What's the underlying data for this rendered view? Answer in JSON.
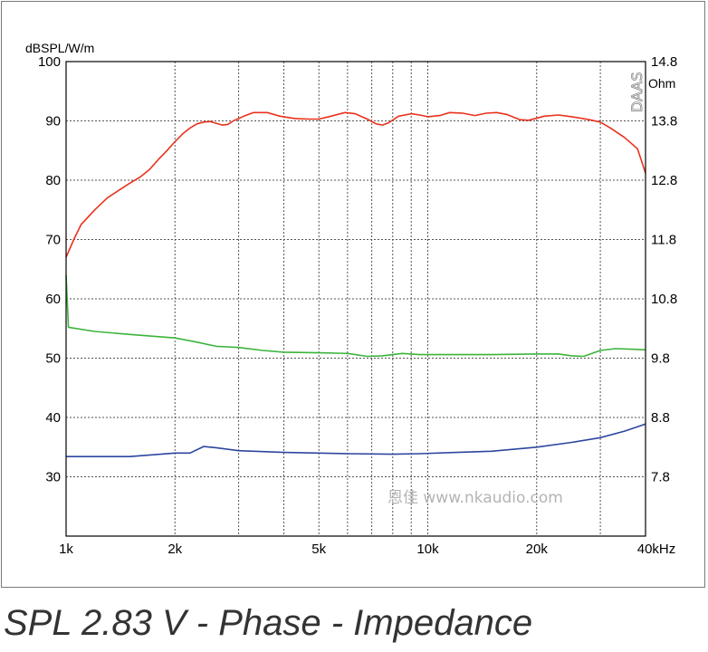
{
  "caption": "SPL 2.83 V - Phase - Impedance",
  "watermark": "恩佳 www.nkaudio.com",
  "brand": "DAAS",
  "chart_data": {
    "type": "line",
    "x_scale": "log",
    "xlim": [
      1000,
      40000
    ],
    "x_ticks": [
      {
        "value": 1000,
        "label": "1k"
      },
      {
        "value": 2000,
        "label": "2k"
      },
      {
        "value": 5000,
        "label": "5k"
      },
      {
        "value": 10000,
        "label": "10k"
      },
      {
        "value": 20000,
        "label": "20k"
      },
      {
        "value": 40000,
        "label": "40kHz"
      }
    ],
    "x_gridlines": [
      1000,
      2000,
      3000,
      4000,
      5000,
      6000,
      7000,
      8000,
      9000,
      10000,
      20000,
      30000,
      40000
    ],
    "left_axis": {
      "label": "dBSPL/W/m",
      "ylim": [
        20,
        100
      ],
      "ticks": [
        30,
        40,
        50,
        60,
        70,
        80,
        90,
        100
      ]
    },
    "right_axis": {
      "label": "Ohm",
      "ylim": [
        6.8,
        14.8
      ],
      "ticks": [
        "7.8",
        "8.8",
        "9.8",
        "10.8",
        "11.8",
        "12.8",
        "13.8",
        "14.8"
      ]
    },
    "grid": true,
    "series": [
      {
        "color": "#e8321e",
        "axis": "left",
        "points": [
          [
            1000,
            67
          ],
          [
            1050,
            70
          ],
          [
            1100,
            72.5
          ],
          [
            1200,
            75
          ],
          [
            1300,
            77
          ],
          [
            1400,
            78.3
          ],
          [
            1500,
            79.5
          ],
          [
            1600,
            80.5
          ],
          [
            1700,
            81.8
          ],
          [
            1800,
            83.5
          ],
          [
            1900,
            85
          ],
          [
            2000,
            86.5
          ],
          [
            2100,
            87.8
          ],
          [
            2200,
            88.8
          ],
          [
            2300,
            89.5
          ],
          [
            2400,
            89.8
          ],
          [
            2500,
            89.9
          ],
          [
            2600,
            89.6
          ],
          [
            2700,
            89.3
          ],
          [
            2800,
            89.4
          ],
          [
            2900,
            90
          ],
          [
            3100,
            90.8
          ],
          [
            3300,
            91.4
          ],
          [
            3600,
            91.4
          ],
          [
            3900,
            90.8
          ],
          [
            4300,
            90.4
          ],
          [
            4700,
            90.3
          ],
          [
            5000,
            90.3
          ],
          [
            5400,
            90.8
          ],
          [
            5900,
            91.4
          ],
          [
            6300,
            91.2
          ],
          [
            6800,
            90.3
          ],
          [
            7200,
            89.5
          ],
          [
            7500,
            89.3
          ],
          [
            7800,
            89.7
          ],
          [
            8300,
            90.8
          ],
          [
            9000,
            91.2
          ],
          [
            9500,
            91
          ],
          [
            10000,
            90.7
          ],
          [
            10800,
            90.9
          ],
          [
            11500,
            91.4
          ],
          [
            12500,
            91.3
          ],
          [
            13500,
            90.9
          ],
          [
            14500,
            91.3
          ],
          [
            15500,
            91.4
          ],
          [
            16500,
            91.1
          ],
          [
            18000,
            90.2
          ],
          [
            19000,
            90.1
          ],
          [
            21000,
            90.8
          ],
          [
            23000,
            91
          ],
          [
            25000,
            90.7
          ],
          [
            28000,
            90.2
          ],
          [
            30000,
            89.8
          ],
          [
            32000,
            88.8
          ],
          [
            35000,
            87.2
          ],
          [
            38000,
            85.3
          ],
          [
            40000,
            81.2
          ]
        ]
      },
      {
        "color": "#3cb43c",
        "axis": "left",
        "points": [
          [
            1000,
            64
          ],
          [
            1015,
            55.2
          ],
          [
            1200,
            54.5
          ],
          [
            1500,
            54
          ],
          [
            2000,
            53.4
          ],
          [
            2300,
            52.7
          ],
          [
            2600,
            52
          ],
          [
            3000,
            51.8
          ],
          [
            3500,
            51.3
          ],
          [
            4000,
            51
          ],
          [
            5000,
            50.9
          ],
          [
            6000,
            50.8
          ],
          [
            6800,
            50.3
          ],
          [
            7500,
            50.4
          ],
          [
            8500,
            50.8
          ],
          [
            9500,
            50.6
          ],
          [
            15000,
            50.6
          ],
          [
            20000,
            50.7
          ],
          [
            23000,
            50.7
          ],
          [
            25000,
            50.4
          ],
          [
            27000,
            50.3
          ],
          [
            30000,
            51.3
          ],
          [
            33000,
            51.6
          ],
          [
            37000,
            51.5
          ],
          [
            40000,
            51.4
          ]
        ]
      },
      {
        "color": "#2d46a0",
        "axis": "left",
        "points": [
          [
            1000,
            33.4
          ],
          [
            1500,
            33.4
          ],
          [
            2000,
            34
          ],
          [
            2200,
            34
          ],
          [
            2400,
            35.1
          ],
          [
            2600,
            34.9
          ],
          [
            3000,
            34.4
          ],
          [
            4000,
            34.1
          ],
          [
            6000,
            33.9
          ],
          [
            8000,
            33.8
          ],
          [
            9500,
            33.9
          ],
          [
            12000,
            34.1
          ],
          [
            15000,
            34.3
          ],
          [
            20000,
            35
          ],
          [
            25000,
            35.8
          ],
          [
            30000,
            36.6
          ],
          [
            35000,
            37.7
          ],
          [
            40000,
            38.9
          ]
        ]
      }
    ]
  }
}
